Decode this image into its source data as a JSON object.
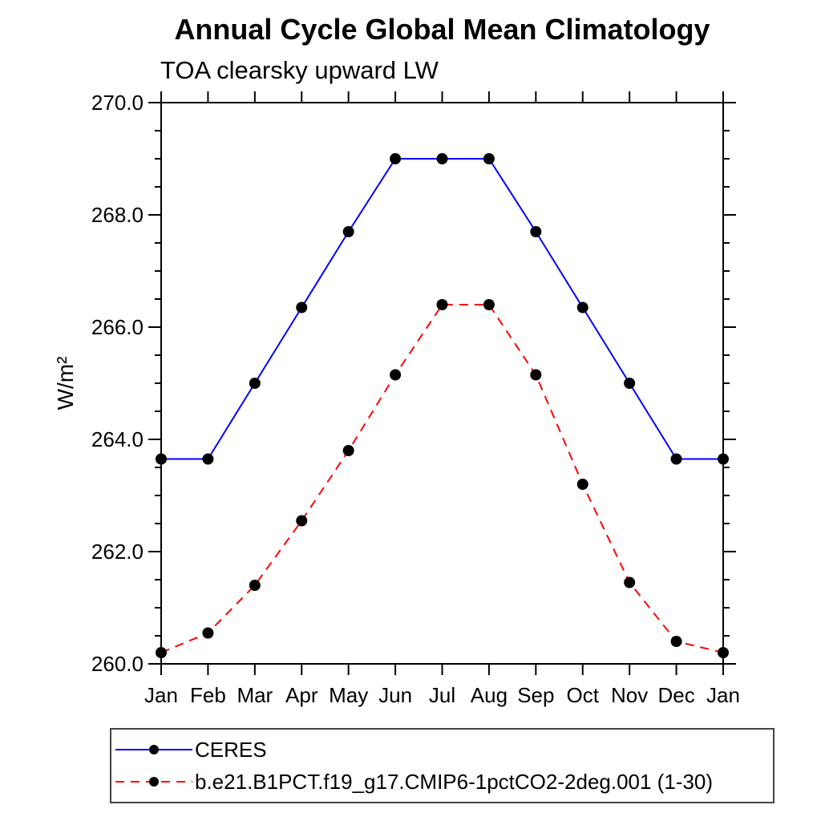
{
  "chart_data": {
    "type": "line",
    "title": "Annual Cycle Global Mean Climatology",
    "subtitle": "TOA clearsky upward LW",
    "ylabel": "W/m²",
    "xlabel": "",
    "categories": [
      "Jan",
      "Feb",
      "Mar",
      "Apr",
      "May",
      "Jun",
      "Jul",
      "Aug",
      "Sep",
      "Oct",
      "Nov",
      "Dec",
      "Jan"
    ],
    "ylim": [
      260.0,
      270.0
    ],
    "ytick_major_step": 2.0,
    "ytick_minor_step": 0.5,
    "ytick_labels": [
      "260.0",
      "262.0",
      "264.0",
      "266.0",
      "268.0",
      "270.0"
    ],
    "grid": "off",
    "legend_position": "bottom-outside-boxed",
    "axis_color": "#000000",
    "marker": {
      "shape": "circle",
      "color": "#000000",
      "radius": 7
    },
    "series": [
      {
        "name": "CERES",
        "color": "#0000ff",
        "line_style": "solid",
        "line_width": 2,
        "values": [
          263.65,
          263.65,
          265.0,
          266.35,
          267.7,
          269.0,
          269.0,
          269.0,
          267.7,
          266.35,
          265.0,
          263.65,
          263.65
        ]
      },
      {
        "name": "b.e21.B1PCT.f19_g17.CMIP6-1pctCO2-2deg.001 (1-30)",
        "color": "#ff0000",
        "line_style": "dashed",
        "line_width": 2,
        "values": [
          260.2,
          260.55,
          261.4,
          262.55,
          263.8,
          265.15,
          266.4,
          266.4,
          265.15,
          263.2,
          261.45,
          260.4,
          260.2
        ]
      }
    ]
  },
  "legend": {
    "entries": [
      {
        "label": "CERES",
        "color": "#0000ff",
        "dash": "solid"
      },
      {
        "label": "b.e21.B1PCT.f19_g17.CMIP6-1pctCO2-2deg.001 (1-30)",
        "color": "#ff0000",
        "dash": "dashed"
      }
    ]
  }
}
